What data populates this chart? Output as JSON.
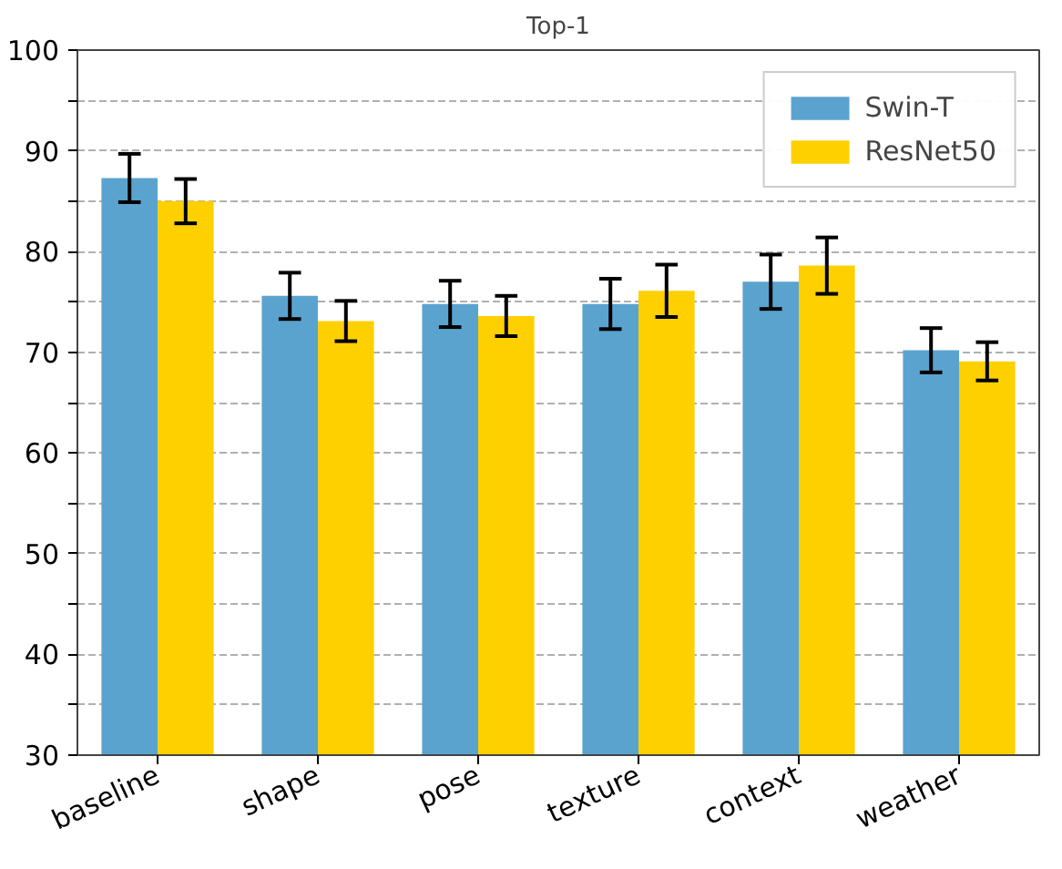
{
  "chart_data": {
    "type": "bar",
    "title": "Top-1",
    "categories": [
      "baseline",
      "shape",
      "pose",
      "texture",
      "context",
      "weather"
    ],
    "series": [
      {
        "name": "Swin-T",
        "color": "#5ba3cf",
        "values": [
          87.3,
          75.6,
          74.8,
          74.8,
          77.0,
          70.2
        ],
        "errors": [
          2.4,
          2.3,
          2.3,
          2.5,
          2.7,
          2.2
        ]
      },
      {
        "name": "ResNet50",
        "color": "#ffd000",
        "values": [
          85.0,
          73.1,
          73.6,
          76.1,
          78.6,
          69.1
        ],
        "errors": [
          2.2,
          2.0,
          2.0,
          2.6,
          2.8,
          1.9
        ]
      }
    ],
    "ylim": [
      30,
      100
    ],
    "yticks": [
      30,
      {
        "value": 35,
        "label": null
      },
      40,
      {
        "value": 45,
        "label": null
      },
      50,
      {
        "value": 55,
        "label": null
      },
      60,
      {
        "value": 65,
        "label": null
      },
      70,
      {
        "value": 75,
        "label": null
      },
      80,
      {
        "value": 85,
        "label": null
      },
      90,
      {
        "value": 95,
        "label": null
      },
      100
    ],
    "grid": "y",
    "legend": "top right"
  }
}
